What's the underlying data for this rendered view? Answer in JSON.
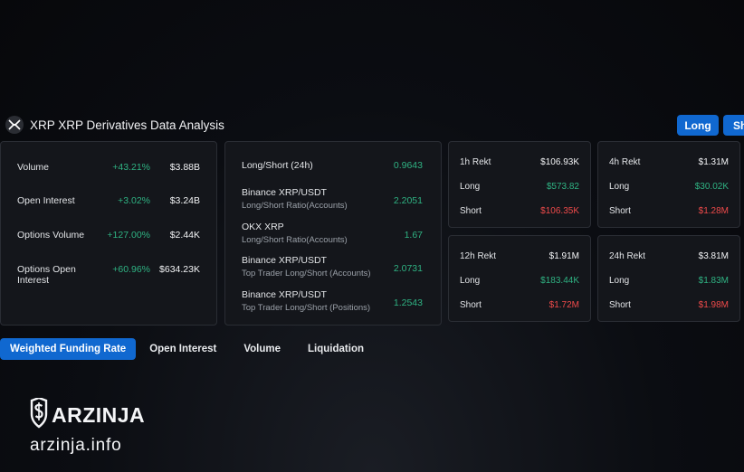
{
  "header": {
    "title": "XRP XRP Derivatives Data Analysis",
    "long_label": "Long",
    "short_label": "Sh"
  },
  "overview": [
    {
      "name": "Volume",
      "pct": "+43.21%",
      "value": "$3.88B"
    },
    {
      "name": "Open Interest",
      "pct": "+3.02%",
      "value": "$3.24B"
    },
    {
      "name": "Options Volume",
      "pct": "+127.00%",
      "value": "$2.44K"
    },
    {
      "name": "Options Open Interest",
      "pct": "+60.96%",
      "value": "$634.23K"
    }
  ],
  "ratios": [
    {
      "title": "Long/Short (24h)",
      "subtitle": "",
      "value": "0.9643"
    },
    {
      "title": "Binance XRP/USDT",
      "subtitle": "Long/Short Ratio(Accounts)",
      "value": "2.2051"
    },
    {
      "title": "OKX XRP",
      "subtitle": "Long/Short Ratio(Accounts)",
      "value": "1.67"
    },
    {
      "title": "Binance XRP/USDT",
      "subtitle": "Top Trader Long/Short (Accounts)",
      "value": "2.0731"
    },
    {
      "title": "Binance XRP/USDT",
      "subtitle": "Top Trader Long/Short (Positions)",
      "value": "1.2543"
    }
  ],
  "rekt": [
    {
      "label": "1h Rekt",
      "total": "$106.93K",
      "long_label": "Long",
      "long": "$573.82",
      "short_label": "Short",
      "short": "$106.35K"
    },
    {
      "label": "4h Rekt",
      "total": "$1.31M",
      "long_label": "Long",
      "long": "$30.02K",
      "short_label": "Short",
      "short": "$1.28M"
    },
    {
      "label": "12h Rekt",
      "total": "$1.91M",
      "long_label": "Long",
      "long": "$183.44K",
      "short_label": "Short",
      "short": "$1.72M"
    },
    {
      "label": "24h Rekt",
      "total": "$3.81M",
      "long_label": "Long",
      "long": "$1.83M",
      "short_label": "Short",
      "short": "$1.98M"
    }
  ],
  "tabs": [
    "Weighted Funding Rate",
    "Open Interest",
    "Volume",
    "Liquidation"
  ],
  "brand": {
    "name": "ARZINJA",
    "url": "arzinja.info"
  },
  "colors": {
    "accent": "#1068d0",
    "positive": "#2fb383",
    "negative": "#ee4a4a"
  }
}
